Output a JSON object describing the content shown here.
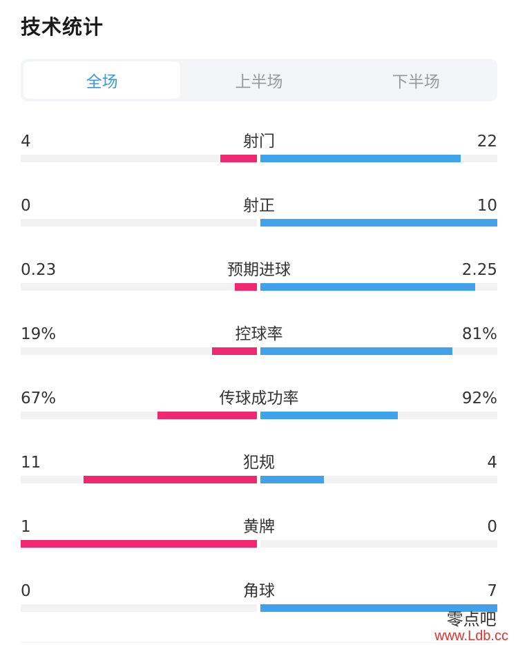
{
  "title": "技术统计",
  "tabs": [
    {
      "label": "全场",
      "active": true
    },
    {
      "label": "上半场",
      "active": false
    },
    {
      "label": "下半场",
      "active": false
    }
  ],
  "colors": {
    "home": "#f0286f",
    "away": "#3fa2ea",
    "active_tab": "#3a9ad9"
  },
  "stats": [
    {
      "label": "射门",
      "home": "4",
      "away": "22",
      "home_ratio": 0.154,
      "away_ratio": 0.846
    },
    {
      "label": "射正",
      "home": "0",
      "away": "10",
      "home_ratio": 0.0,
      "away_ratio": 1.0
    },
    {
      "label": "预期进球",
      "home": "0.23",
      "away": "2.25",
      "home_ratio": 0.093,
      "away_ratio": 0.907
    },
    {
      "label": "控球率",
      "home": "19%",
      "away": "81%",
      "home_ratio": 0.19,
      "away_ratio": 0.81
    },
    {
      "label": "传球成功率",
      "home": "67%",
      "away": "92%",
      "home_ratio": 0.42,
      "away_ratio": 0.58
    },
    {
      "label": "犯规",
      "home": "11",
      "away": "4",
      "home_ratio": 0.733,
      "away_ratio": 0.267
    },
    {
      "label": "黄牌",
      "home": "1",
      "away": "0",
      "home_ratio": 1.0,
      "away_ratio": 0.0
    },
    {
      "label": "角球",
      "home": "0",
      "away": "7",
      "home_ratio": 0.0,
      "away_ratio": 1.0
    }
  ],
  "watermark": {
    "name": "零点吧",
    "url": "www.Ldb.cc"
  }
}
